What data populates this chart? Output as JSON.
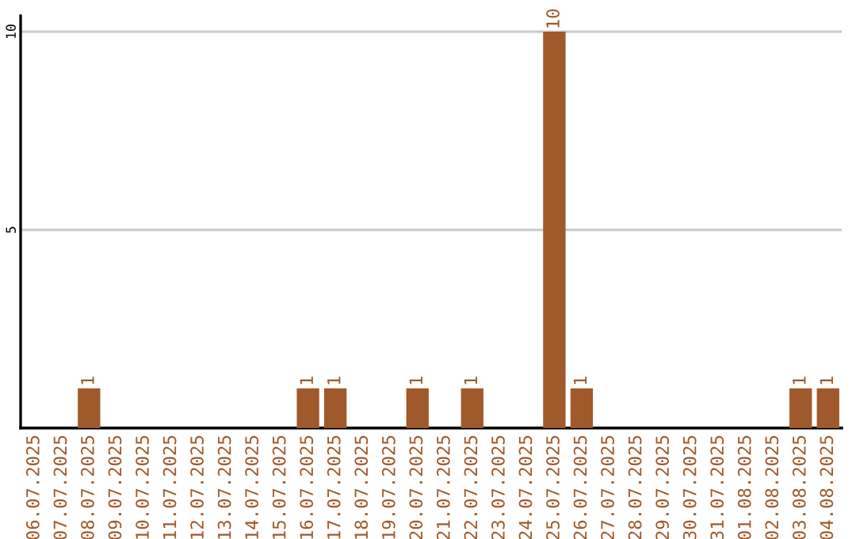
{
  "chart_data": {
    "type": "bar",
    "categories": [
      "06.07.2025",
      "07.07.2025",
      "08.07.2025",
      "09.07.2025",
      "10.07.2025",
      "11.07.2025",
      "12.07.2025",
      "13.07.2025",
      "14.07.2025",
      "15.07.2025",
      "16.07.2025",
      "17.07.2025",
      "18.07.2025",
      "19.07.2025",
      "20.07.2025",
      "21.07.2025",
      "22.07.2025",
      "23.07.2025",
      "24.07.2025",
      "25.07.2025",
      "26.07.2025",
      "27.07.2025",
      "28.07.2025",
      "29.07.2025",
      "30.07.2025",
      "31.07.2025",
      "01.08.2025",
      "02.08.2025",
      "03.08.2025",
      "04.08.2025"
    ],
    "values": [
      0,
      0,
      1,
      0,
      0,
      0,
      0,
      0,
      0,
      0,
      1,
      1,
      0,
      0,
      1,
      0,
      1,
      0,
      0,
      10,
      1,
      0,
      0,
      0,
      0,
      0,
      0,
      0,
      1,
      1
    ],
    "value_labels": [
      null,
      null,
      "1",
      null,
      null,
      null,
      null,
      null,
      null,
      null,
      "1",
      "1",
      null,
      null,
      "1",
      null,
      "1",
      null,
      null,
      "10",
      "1",
      null,
      null,
      null,
      null,
      null,
      null,
      null,
      "1",
      "1"
    ],
    "color": "#a0592a",
    "ylim": [
      0,
      10.4
    ],
    "yticks": [
      5,
      10
    ],
    "grid": "y"
  }
}
